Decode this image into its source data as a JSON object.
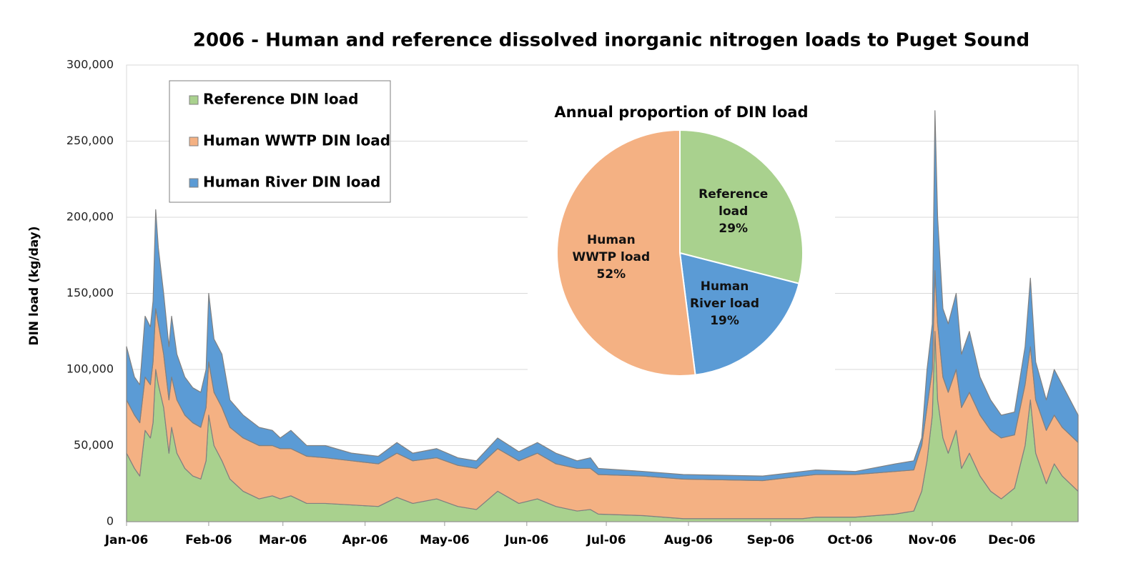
{
  "chart_data": [
    {
      "type": "area",
      "title": "2006 - Human and reference dissolved inorganic nitrogen loads to Puget Sound",
      "ylabel": "DIN load (kg/day)",
      "stacked": true,
      "grid": true,
      "legend": "upper left",
      "x": [
        0,
        3,
        5,
        7,
        9,
        10,
        11,
        12,
        14,
        16,
        17,
        19,
        22,
        25,
        28,
        30,
        31,
        33,
        36,
        39,
        44,
        50,
        55,
        58,
        62,
        68,
        75,
        85,
        95,
        102,
        108,
        117,
        125,
        132,
        140,
        148,
        155,
        162,
        170,
        175,
        178,
        195,
        210,
        240,
        255,
        260,
        275,
        290,
        297,
        300,
        302,
        304,
        305,
        306,
        308,
        310,
        313,
        315,
        318,
        322,
        326,
        330,
        335,
        339,
        341,
        343,
        347,
        350,
        353,
        359
      ],
      "xlim": [
        0,
        359
      ],
      "xticks": [
        {
          "value": 0,
          "label": "Jan-06"
        },
        {
          "value": 31,
          "label": "Feb-06"
        },
        {
          "value": 59,
          "label": "Mar-06"
        },
        {
          "value": 90,
          "label": "Apr-06"
        },
        {
          "value": 120,
          "label": "May-06"
        },
        {
          "value": 151,
          "label": "Jun-06"
        },
        {
          "value": 181,
          "label": "Jul-06"
        },
        {
          "value": 212,
          "label": "Aug-06"
        },
        {
          "value": 243,
          "label": "Sep-06"
        },
        {
          "value": 273,
          "label": "Oct-06"
        },
        {
          "value": 304,
          "label": "Nov-06"
        },
        {
          "value": 334,
          "label": "Dec-06"
        }
      ],
      "ylim": [
        0,
        300000
      ],
      "yticks": [
        0,
        {
          "value": 50000,
          "label": "50,000"
        },
        {
          "value": 100000,
          "label": "100,000"
        },
        {
          "value": 150000,
          "label": "150,000"
        },
        {
          "value": 200000,
          "label": "200,000"
        },
        {
          "value": 250000,
          "label": "250,000"
        },
        {
          "value": 300000,
          "label": "300,000"
        }
      ],
      "series": [
        {
          "name": "Reference DIN load",
          "color": "#a9d18e",
          "values": [
            45000,
            35000,
            30000,
            60000,
            55000,
            65000,
            100000,
            90000,
            75000,
            45000,
            62000,
            45000,
            35000,
            30000,
            28000,
            40000,
            70000,
            50000,
            40000,
            28000,
            20000,
            15000,
            17000,
            15000,
            17000,
            12000,
            12000,
            11000,
            10000,
            16000,
            12000,
            15000,
            10000,
            8000,
            20000,
            12000,
            15000,
            10000,
            7000,
            8000,
            5000,
            4000,
            2000,
            2000,
            2000,
            3000,
            3000,
            5000,
            7000,
            20000,
            40000,
            70000,
            125000,
            80000,
            55000,
            45000,
            60000,
            35000,
            45000,
            30000,
            20000,
            15000,
            22000,
            50000,
            80000,
            45000,
            25000,
            38000,
            30000,
            20000
          ]
        },
        {
          "name": "Human WWTP DIN load",
          "color": "#f4b183",
          "values": [
            35000,
            35000,
            35000,
            35000,
            35000,
            40000,
            40000,
            40000,
            35000,
            35000,
            33000,
            35000,
            35000,
            35000,
            34000,
            35000,
            35000,
            35000,
            35000,
            34000,
            35000,
            35000,
            33000,
            33000,
            31000,
            31000,
            30000,
            29000,
            28000,
            29000,
            28000,
            27000,
            27000,
            27000,
            28000,
            28000,
            30000,
            28000,
            28000,
            27000,
            26000,
            26000,
            26000,
            25000,
            28000,
            28000,
            28000,
            28000,
            27000,
            30000,
            35000,
            30000,
            40000,
            50000,
            40000,
            40000,
            40000,
            40000,
            40000,
            40000,
            40000,
            40000,
            35000,
            40000,
            35000,
            35000,
            35000,
            32000,
            32000,
            32000
          ]
        },
        {
          "name": "Human River DIN load",
          "color": "#5b9bd5",
          "values": [
            35000,
            25000,
            25000,
            40000,
            38000,
            40000,
            65000,
            50000,
            40000,
            35000,
            40000,
            30000,
            25000,
            23000,
            23000,
            25000,
            45000,
            35000,
            35000,
            18000,
            15000,
            12000,
            10000,
            7000,
            12000,
            7000,
            8000,
            5000,
            5000,
            7000,
            5000,
            6000,
            5000,
            5000,
            7000,
            6000,
            7000,
            7000,
            5000,
            7000,
            4000,
            3000,
            3000,
            3000,
            3000,
            3000,
            2000,
            5000,
            6000,
            5000,
            25000,
            30000,
            105000,
            70000,
            45000,
            45000,
            50000,
            35000,
            40000,
            25000,
            20000,
            15000,
            15000,
            25000,
            45000,
            25000,
            20000,
            30000,
            28000,
            18000
          ]
        }
      ]
    },
    {
      "type": "pie",
      "title": "Annual proportion of DIN load",
      "categories": [
        "Reference load",
        "Human River load",
        "Human WWTP load"
      ],
      "values": [
        29,
        19,
        52
      ],
      "value_labels": [
        "29%",
        "19%",
        "52%"
      ],
      "colors": [
        "#a9d18e",
        "#5b9bd5",
        "#f4b183"
      ]
    }
  ]
}
